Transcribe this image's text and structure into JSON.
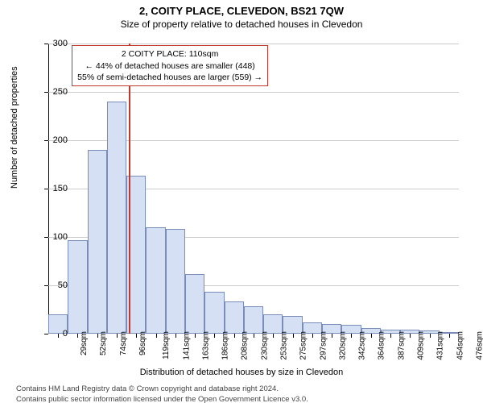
{
  "title": "2, COITY PLACE, CLEVEDON, BS21 7QW",
  "subtitle": "Size of property relative to detached houses in Clevedon",
  "y_axis_label": "Number of detached properties",
  "x_axis_label": "Distribution of detached houses by size in Clevedon",
  "attribution_line1": "Contains HM Land Registry data © Crown copyright and database right 2024.",
  "attribution_line2": "Contains public sector information licensed under the Open Government Licence v3.0.",
  "info_box": {
    "line1": "2 COITY PLACE: 110sqm",
    "line2": "← 44% of detached houses are smaller (448)",
    "line3": "55% of semi-detached houses are larger (559) →",
    "border_color": "#c0392b",
    "left_index": 1.2,
    "top_value": 298
  },
  "chart": {
    "type": "histogram",
    "ylim": [
      0,
      300
    ],
    "ytick_step": 50,
    "xticks": [
      "29sqm",
      "52sqm",
      "74sqm",
      "96sqm",
      "119sqm",
      "141sqm",
      "163sqm",
      "186sqm",
      "208sqm",
      "230sqm",
      "253sqm",
      "275sqm",
      "297sqm",
      "320sqm",
      "342sqm",
      "364sqm",
      "387sqm",
      "409sqm",
      "431sqm",
      "454sqm",
      "476sqm"
    ],
    "values": [
      20,
      97,
      190,
      240,
      163,
      110,
      108,
      62,
      43,
      33,
      28,
      20,
      18,
      12,
      10,
      9,
      6,
      4,
      4,
      3,
      2
    ],
    "bar_fill": "#d6e0f5",
    "bar_stroke": "#7a8db8",
    "grid_color": "#cccccc",
    "background": "#ffffff",
    "marker_index": 3.6,
    "marker_color": "#c0392b",
    "label_fontsize": 11,
    "tick_fontsize": 10,
    "title_fontsize": 13
  }
}
